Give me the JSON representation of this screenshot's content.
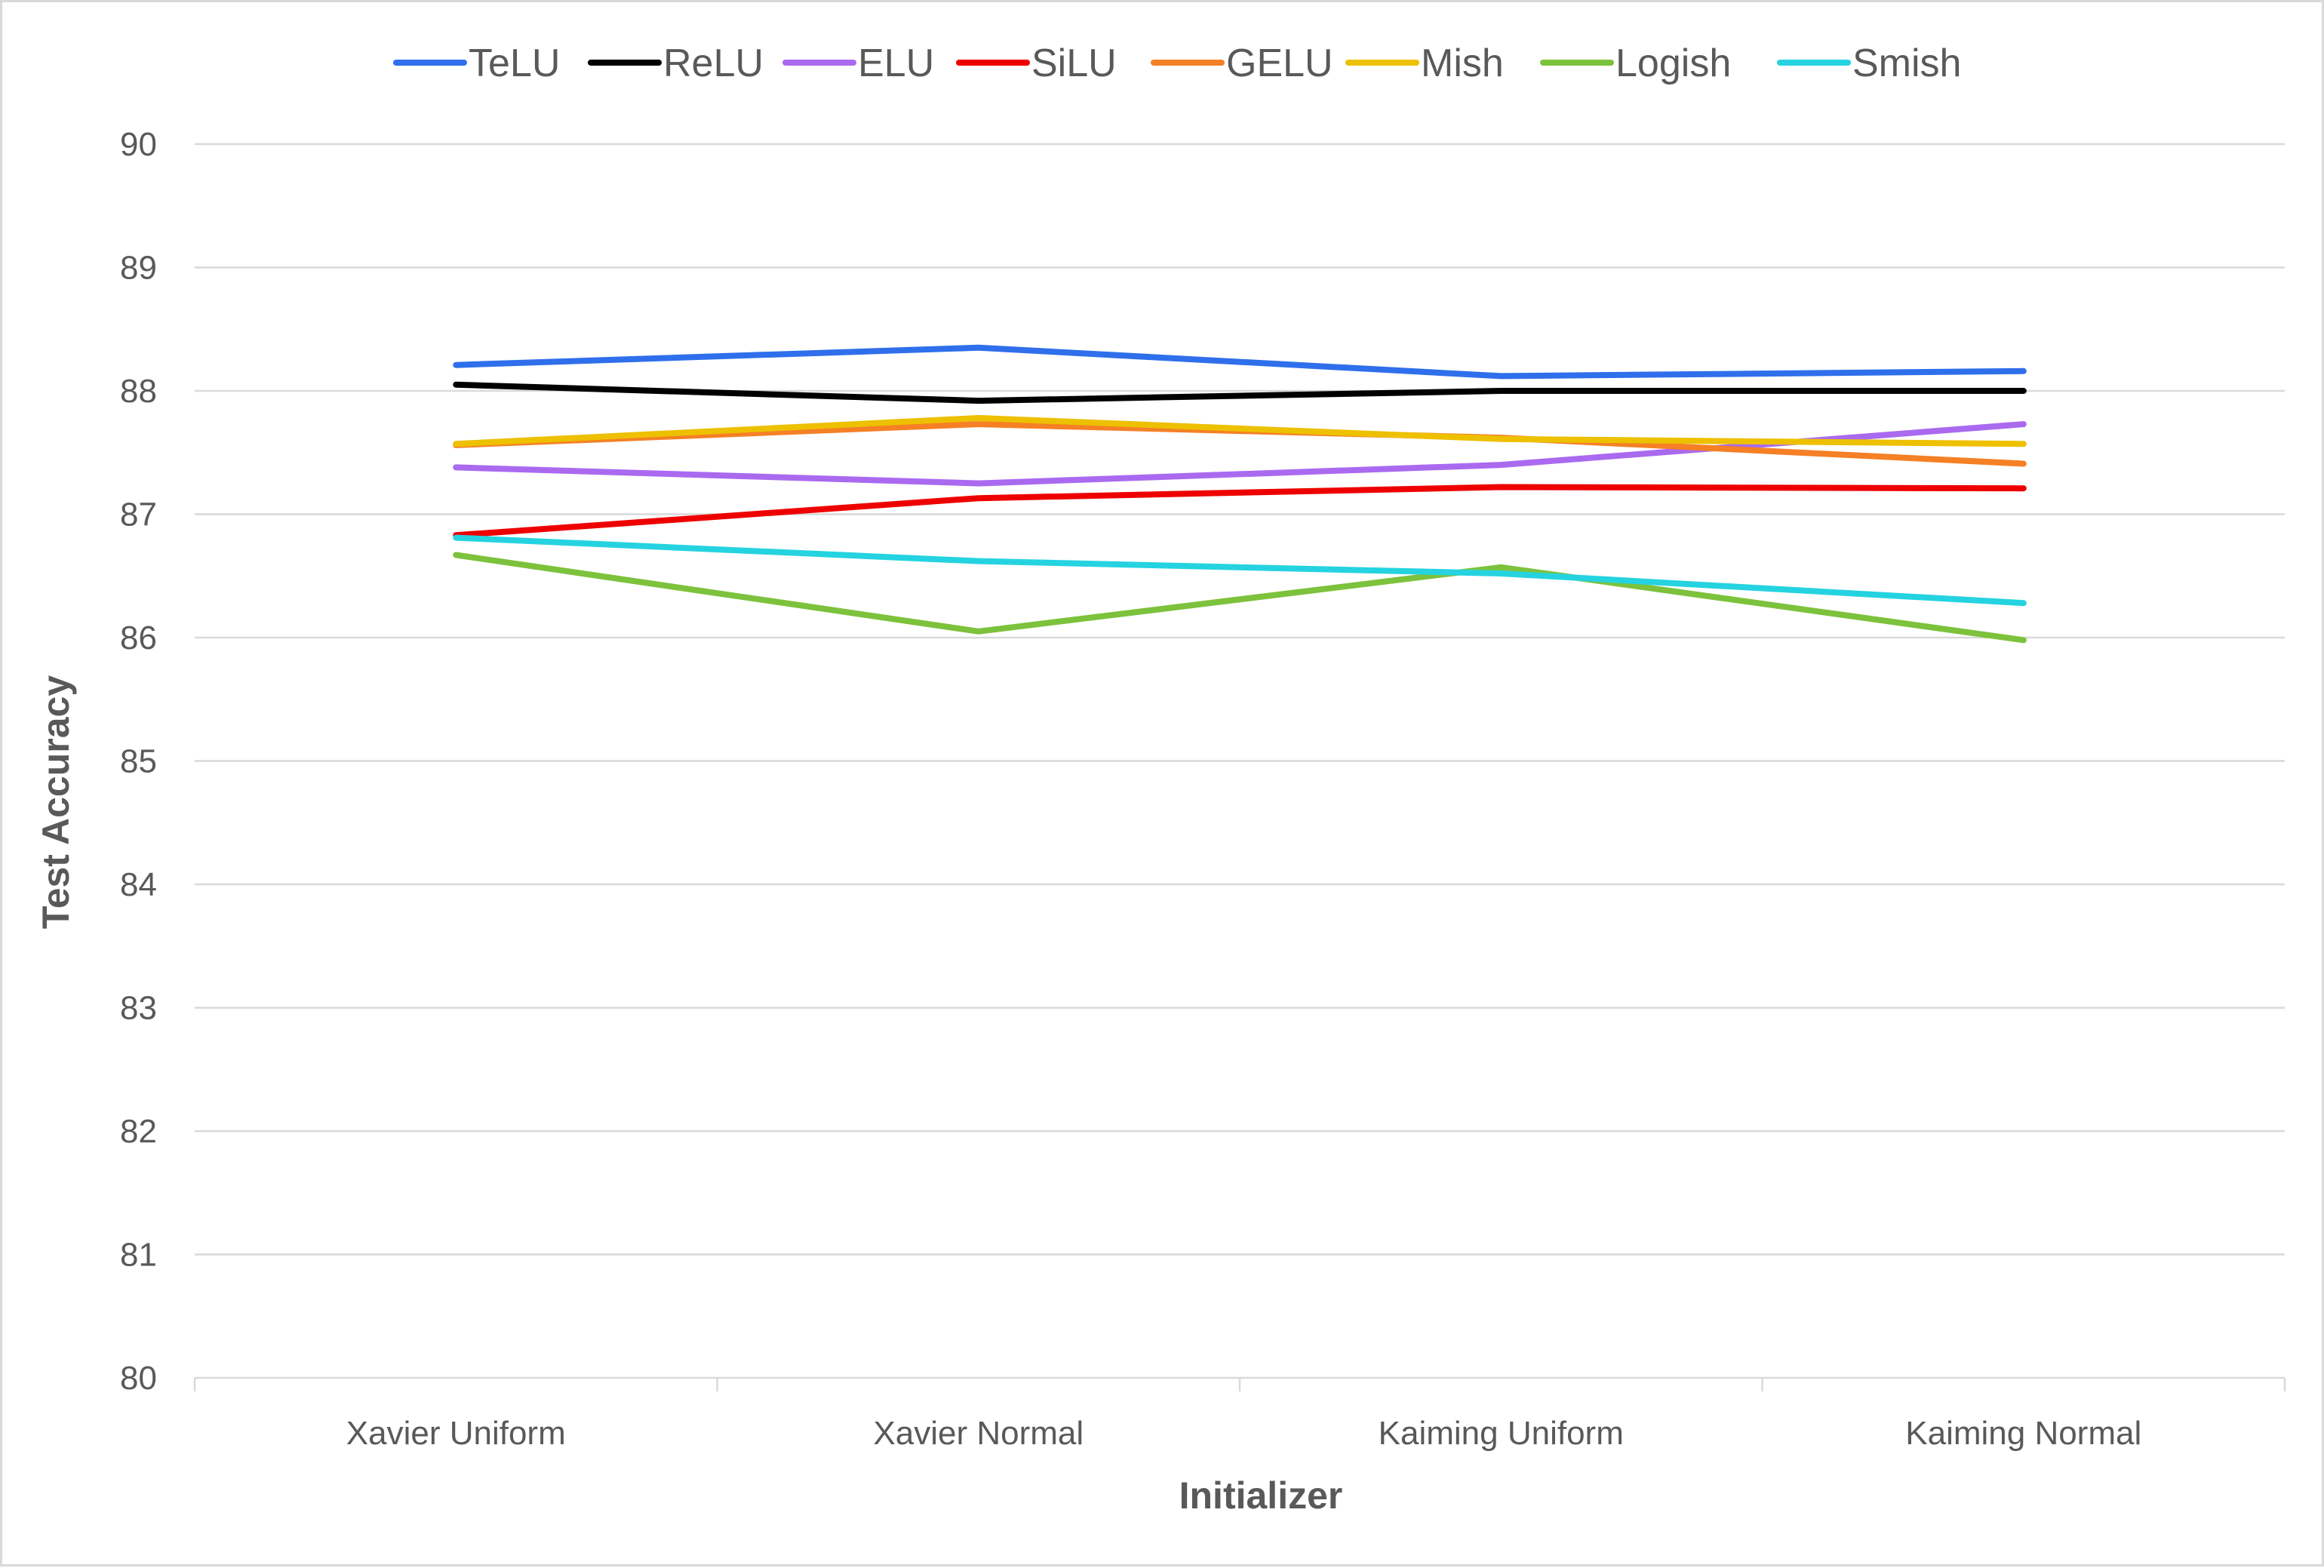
{
  "chart_data": {
    "type": "line",
    "categories": [
      "Xavier Uniform",
      "Xavier Normal",
      "Kaiming Uniform",
      "Kaiming Normal"
    ],
    "xlabel": "Initializer",
    "ylabel": "Test Accuracy",
    "ylim": [
      80,
      90
    ],
    "yticks": [
      "80",
      "81",
      "82",
      "83",
      "84",
      "85",
      "86",
      "87",
      "88",
      "89",
      "90"
    ],
    "grid": true,
    "legend_position": "top",
    "series": [
      {
        "name": "TeLU",
        "color": "#2F6FEB",
        "values": [
          88.21,
          88.35,
          88.12,
          88.16
        ]
      },
      {
        "name": "ReLU",
        "color": "#000000",
        "values": [
          88.05,
          87.92,
          88.0,
          88.0
        ]
      },
      {
        "name": "ELU",
        "color": "#A96AF0",
        "values": [
          87.38,
          87.25,
          87.4,
          87.73
        ]
      },
      {
        "name": "SiLU",
        "color": "#EE0000",
        "values": [
          86.83,
          87.13,
          87.22,
          87.21
        ]
      },
      {
        "name": "GELU",
        "color": "#F58025",
        "values": [
          87.56,
          87.73,
          87.62,
          87.41
        ]
      },
      {
        "name": "Mish",
        "color": "#EDC000",
        "values": [
          87.57,
          87.78,
          87.61,
          87.57
        ]
      },
      {
        "name": "Logish",
        "color": "#7CC23C",
        "values": [
          86.67,
          86.05,
          86.57,
          85.98
        ]
      },
      {
        "name": "Smish",
        "color": "#25D3E0",
        "values": [
          86.81,
          86.62,
          86.52,
          86.28
        ]
      }
    ]
  }
}
